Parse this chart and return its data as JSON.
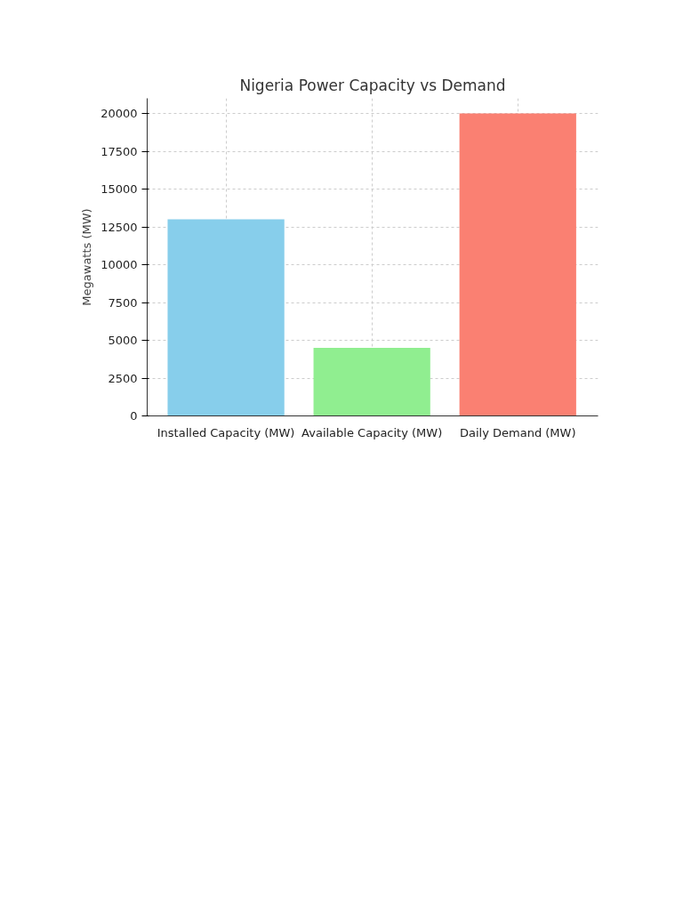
{
  "chart_data": {
    "type": "bar",
    "title": "Nigeria Power Capacity vs Demand",
    "ylabel": "Megawatts (MW)",
    "categories": [
      "Installed Capacity (MW)",
      "Available Capacity (MW)",
      "Daily Demand (MW)"
    ],
    "values": [
      13000,
      4500,
      20000
    ],
    "colors": [
      "#87ceeb",
      "#90ee90",
      "#fa8072"
    ],
    "ylim": [
      0,
      21000
    ],
    "yticks": [
      0,
      2500,
      5000,
      7500,
      10000,
      12500,
      15000,
      17500,
      20000
    ],
    "grid": true
  }
}
